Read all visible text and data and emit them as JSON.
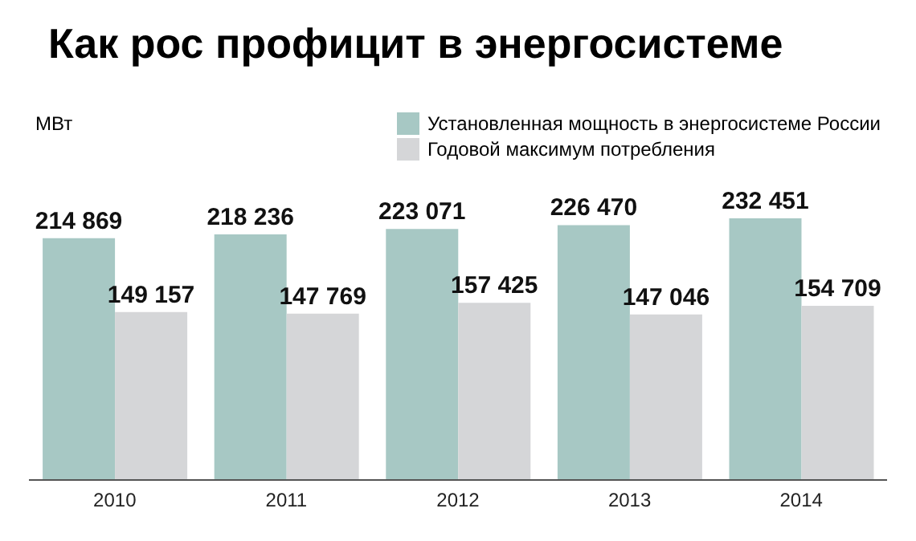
{
  "chart_data": {
    "type": "bar",
    "title": "Как рос профицит в энергосистеме",
    "ylabel": "МВт",
    "categories": [
      "2010",
      "2011",
      "2012",
      "2013",
      "2014"
    ],
    "series": [
      {
        "name": "Установленная мощность в энергосистеме России",
        "color": "#a7c8c4",
        "values": [
          214869,
          218236,
          223071,
          226470,
          232451
        ]
      },
      {
        "name": "Годовой максимум потребления",
        "color": "#d5d6d8",
        "values": [
          149157,
          147769,
          157425,
          147046,
          154709
        ]
      }
    ],
    "data_labels": true,
    "legend": "top right"
  }
}
